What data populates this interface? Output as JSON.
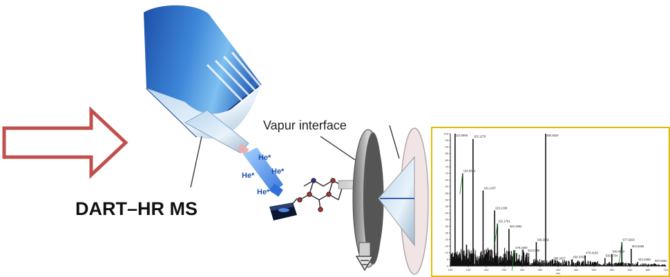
{
  "labels": {
    "dart_hr_ms": "DART–HR MS",
    "vapur_interface": "Vapur interface",
    "helium_ions": [
      "He*",
      "He*",
      "He*",
      "He*"
    ]
  },
  "colors": {
    "arrow": "#c0504d",
    "source_body": "#2a66c4",
    "spectrum_frame": "#e6b800",
    "spectrum_line": "#111111",
    "spectrum_label": "#1a8c1a"
  },
  "chart_data": {
    "type": "line",
    "title": "",
    "xlabel": "m/z",
    "ylabel": "",
    "xlim": [
      100,
      700
    ],
    "ylim": [
      0,
      100
    ],
    "yticks": [
      0,
      5,
      10,
      15,
      20,
      25,
      30,
      35,
      40,
      45,
      50,
      55,
      60,
      65,
      70,
      75,
      80,
      85,
      90,
      95,
      100
    ],
    "xticks": [
      100,
      150,
      200,
      250,
      300,
      350,
      400,
      450,
      500,
      550,
      600,
      650,
      700
    ],
    "peaks": [
      {
        "mz": 113.0606,
        "intensity": 100,
        "label": "113.0606"
      },
      {
        "mz": 134.0814,
        "intensity": 70,
        "label": "134.0814"
      },
      {
        "mz": 163.1276,
        "intensity": 96,
        "label": "163.1276"
      },
      {
        "mz": 191.1437,
        "intensity": 57,
        "label": "191.1437"
      },
      {
        "mz": 223.1336,
        "intensity": 42,
        "label": "223.1336"
      },
      {
        "mz": 231.1761,
        "intensity": 32,
        "label": "231.1761"
      },
      {
        "mz": 263.1692,
        "intensity": 28,
        "label": "263.1692"
      },
      {
        "mz": 279.16,
        "intensity": 12,
        "label": "279.1600"
      },
      {
        "mz": 313.2736,
        "intensity": 10,
        "label": "313.2736"
      },
      {
        "mz": 339.2962,
        "intensity": 18,
        "label": "339.2962"
      },
      {
        "mz": 365.3624,
        "intensity": 100,
        "label": "365.3624"
      },
      {
        "mz": 385.3477,
        "intensity": 4,
        "label": "385.3477"
      },
      {
        "mz": 439.3765,
        "intensity": 5,
        "label": "439.3765"
      },
      {
        "mz": 475.4156,
        "intensity": 8,
        "label": "475.4156"
      },
      {
        "mz": 530.4704,
        "intensity": 6,
        "label": "530.4704"
      },
      {
        "mz": 549.4863,
        "intensity": 9,
        "label": "549.4863"
      },
      {
        "mz": 577.5203,
        "intensity": 18,
        "label": "577.5203"
      },
      {
        "mz": 603.5358,
        "intensity": 13,
        "label": "603.5358"
      },
      {
        "mz": 621.5488,
        "intensity": 3,
        "label": "621.5488"
      },
      {
        "mz": 667.6252,
        "intensity": 2,
        "label": "667.6252"
      }
    ]
  }
}
